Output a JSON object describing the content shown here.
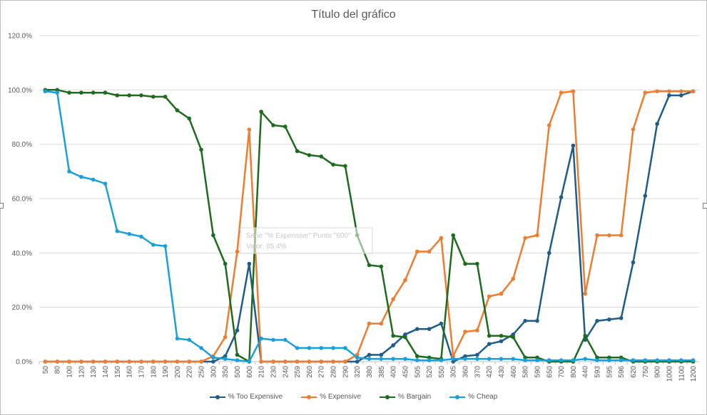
{
  "colors": {
    "too_expensive": "#1f5c8a",
    "expensive": "#ed7d31",
    "bargain": "#1d6b1d",
    "cheap": "#1aa0d8",
    "grid": "#d9d9d9",
    "axis": "#bfbfbf"
  },
  "chart_data": {
    "type": "line",
    "title": "Título del gráfico",
    "xlabel": "",
    "ylabel": "",
    "ylim": [
      0,
      120
    ],
    "y_ticks": [
      "0.0%",
      "20.0%",
      "40.0%",
      "60.0%",
      "80.0%",
      "100.0%",
      "120.0%"
    ],
    "grid": true,
    "legend": "bottom",
    "categories": [
      "50",
      "80",
      "100",
      "120",
      "130",
      "140",
      "150",
      "160",
      "170",
      "180",
      "190",
      "200",
      "220",
      "250",
      "300",
      "350",
      "500",
      "600",
      "210",
      "230",
      "240",
      "259",
      "260",
      "270",
      "280",
      "290",
      "320",
      "380",
      "385",
      "400",
      "450",
      "505",
      "520",
      "550",
      "305",
      "360",
      "370",
      "420",
      "430",
      "460",
      "580",
      "590",
      "650",
      "700",
      "800",
      "440",
      "593",
      "595",
      "596",
      "620",
      "750",
      "900",
      "1000",
      "1100",
      "1200"
    ],
    "series": [
      {
        "name": "% Too Expensive",
        "color_key": "too_expensive",
        "values": [
          0,
          0,
          0,
          0,
          0,
          0,
          0,
          0,
          0,
          0,
          0,
          0,
          0,
          0,
          0,
          2,
          11.5,
          36,
          0,
          0,
          0,
          0,
          0,
          0,
          0,
          0,
          0,
          2.5,
          2.5,
          6,
          10,
          12,
          12,
          14,
          0,
          2,
          2.5,
          6.5,
          7.5,
          10,
          15,
          15,
          40,
          60.5,
          79.5,
          8,
          15,
          15.5,
          16,
          36.5,
          61,
          87.5,
          98,
          98,
          99.5
        ]
      },
      {
        "name": "% Expensive",
        "color_key": "expensive",
        "values": [
          0,
          0,
          0,
          0,
          0,
          0,
          0,
          0,
          0,
          0,
          0,
          0,
          0,
          0,
          2,
          9,
          40.5,
          85.4,
          0,
          0,
          0,
          0,
          0,
          0,
          0,
          0,
          2.5,
          14,
          14,
          23,
          30,
          40.5,
          40.5,
          45.5,
          2,
          11,
          11.5,
          24,
          25,
          30.5,
          45.5,
          46.5,
          87,
          99,
          99.5,
          25,
          46.5,
          46.5,
          46.5,
          85.5,
          99,
          99.5,
          99.5,
          99.5,
          99.5
        ]
      },
      {
        "name": "% Bargain",
        "color_key": "bargain",
        "values": [
          100,
          100,
          99,
          99,
          99,
          99,
          98,
          98,
          98,
          97.5,
          97.5,
          92.5,
          89.5,
          78,
          46.5,
          36,
          2.5,
          0,
          92,
          87,
          86.5,
          77.5,
          76,
          75.5,
          72.5,
          72,
          46.5,
          35.5,
          35,
          9.5,
          9,
          2,
          1.5,
          1,
          46.5,
          36,
          36,
          9.5,
          9.5,
          9,
          1.5,
          1.5,
          0,
          0,
          0,
          9.5,
          1.5,
          1.5,
          1.5,
          0,
          0,
          0,
          0,
          0,
          0
        ]
      },
      {
        "name": "% Cheap",
        "color_key": "cheap",
        "values": [
          99.5,
          99,
          70,
          68,
          67,
          65.5,
          48,
          47,
          46,
          43,
          42.5,
          8.5,
          8,
          5,
          1.5,
          1,
          0.5,
          0,
          8.5,
          8,
          8,
          5,
          5,
          5,
          5,
          5,
          1.5,
          1,
          1,
          1,
          1,
          0.5,
          0.5,
          0.5,
          1,
          1,
          1,
          1,
          1,
          1,
          0.5,
          0.5,
          0.5,
          0.5,
          0.5,
          1,
          0.5,
          0.5,
          0.5,
          0.5,
          0.5,
          0.5,
          0.5,
          0.5,
          0.5
        ]
      }
    ],
    "tooltip": {
      "line1": "Serie \"% Expensive\" Punto \"600\"",
      "line2": "Valor: 85.4%"
    }
  }
}
